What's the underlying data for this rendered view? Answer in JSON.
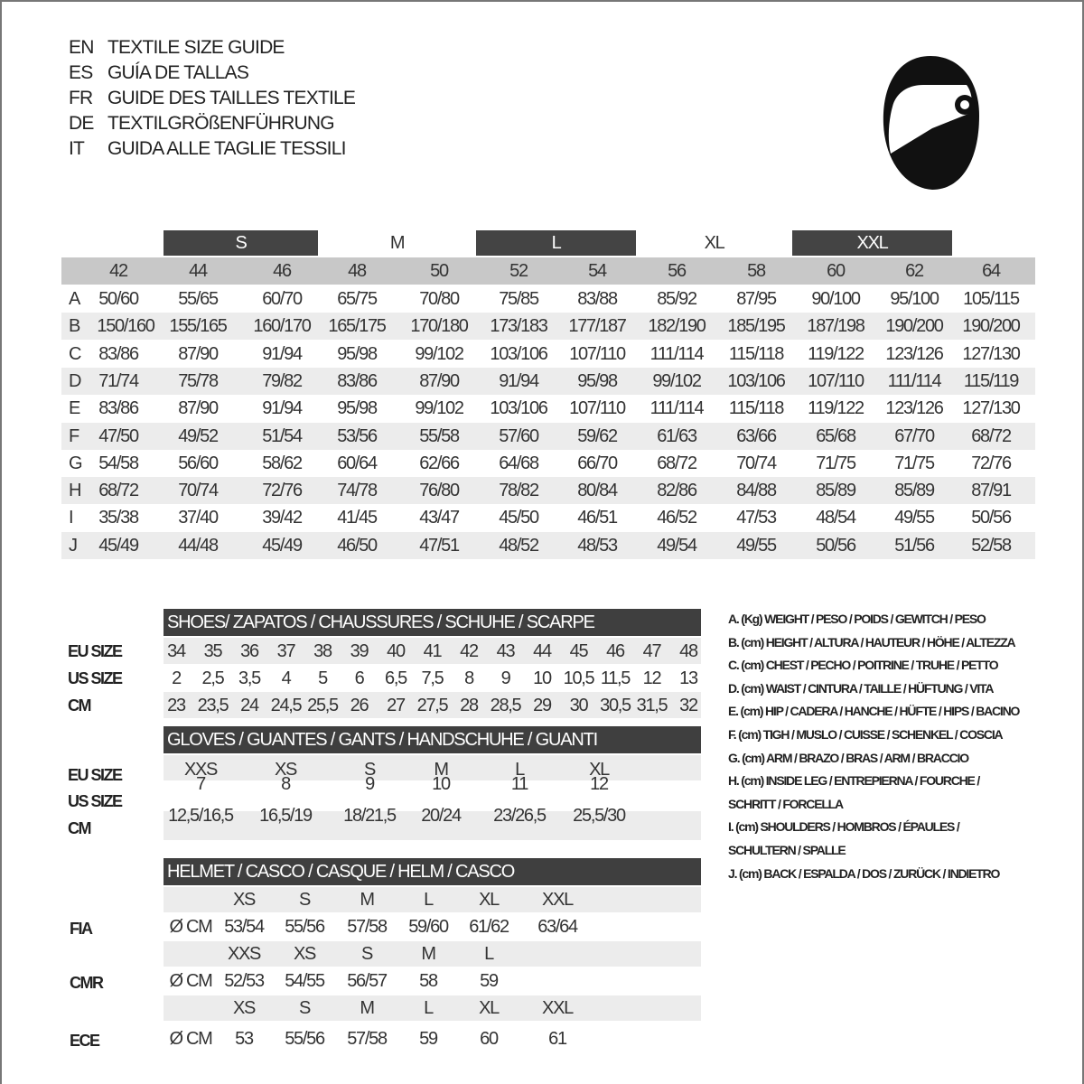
{
  "titles": [
    {
      "code": "EN",
      "text": "TEXTILE SIZE GUIDE"
    },
    {
      "code": "ES",
      "text": "GUÍA DE TALLAS"
    },
    {
      "code": "FR",
      "text": "GUIDE DES TAILLES TEXTILE"
    },
    {
      "code": "DE",
      "text": "TEXTILGRÖßENFÜHRUNG"
    },
    {
      "code": "IT",
      "text": "GUIDA ALLE TAGLIE TESSILI"
    }
  ],
  "icons": {
    "helmet": "helmet-icon"
  },
  "colors": {
    "dark": "#3f3f3f",
    "header_gray": "#c8c8c8",
    "stripe": "#ececec"
  },
  "textile": {
    "bands": [
      "S",
      "M",
      "L",
      "XL",
      "XXL"
    ],
    "sizes": [
      "42",
      "44",
      "46",
      "48",
      "50",
      "52",
      "54",
      "56",
      "58",
      "60",
      "62",
      "64"
    ],
    "rows": [
      {
        "label": "A",
        "values": [
          "50/60",
          "55/65",
          "60/70",
          "65/75",
          "70/80",
          "75/85",
          "83/88",
          "85/92",
          "87/95",
          "90/100",
          "95/100",
          "105/115"
        ]
      },
      {
        "label": "B",
        "values": [
          "150/160",
          "155/165",
          "160/170",
          "165/175",
          "170/180",
          "173/183",
          "177/187",
          "182/190",
          "185/195",
          "187/198",
          "190/200",
          "190/200"
        ]
      },
      {
        "label": "C",
        "values": [
          "83/86",
          "87/90",
          "91/94",
          "95/98",
          "99/102",
          "103/106",
          "107/110",
          "111/114",
          "115/118",
          "119/122",
          "123/126",
          "127/130"
        ]
      },
      {
        "label": "D",
        "values": [
          "71/74",
          "75/78",
          "79/82",
          "83/86",
          "87/90",
          "91/94",
          "95/98",
          "99/102",
          "103/106",
          "107/110",
          "111/114",
          "115/119"
        ]
      },
      {
        "label": "E",
        "values": [
          "83/86",
          "87/90",
          "91/94",
          "95/98",
          "99/102",
          "103/106",
          "107/110",
          "111/114",
          "115/118",
          "119/122",
          "123/126",
          "127/130"
        ]
      },
      {
        "label": "F",
        "values": [
          "47/50",
          "49/52",
          "51/54",
          "53/56",
          "55/58",
          "57/60",
          "59/62",
          "61/63",
          "63/66",
          "65/68",
          "67/70",
          "68/72"
        ]
      },
      {
        "label": "G",
        "values": [
          "54/58",
          "56/60",
          "58/62",
          "60/64",
          "62/66",
          "64/68",
          "66/70",
          "68/72",
          "70/74",
          "71/75",
          "71/75",
          "72/76"
        ]
      },
      {
        "label": "H",
        "values": [
          "68/72",
          "70/74",
          "72/76",
          "74/78",
          "76/80",
          "78/82",
          "80/84",
          "82/86",
          "84/88",
          "85/89",
          "85/89",
          "87/91"
        ]
      },
      {
        "label": "I",
        "values": [
          "35/38",
          "37/40",
          "39/42",
          "41/45",
          "43/47",
          "45/50",
          "46/51",
          "46/52",
          "47/53",
          "48/54",
          "49/55",
          "50/56"
        ]
      },
      {
        "label": "J",
        "values": [
          "45/49",
          "44/48",
          "45/49",
          "46/50",
          "47/51",
          "48/52",
          "48/53",
          "49/54",
          "49/55",
          "50/56",
          "51/56",
          "52/58"
        ]
      }
    ]
  },
  "shoes": {
    "title": "SHOES/ ZAPATOS / CHAUSSURES / SCHUHE / SCARPE",
    "rows": [
      {
        "label": "EU SIZE",
        "values": [
          "34",
          "35",
          "36",
          "37",
          "38",
          "39",
          "40",
          "41",
          "42",
          "43",
          "44",
          "45",
          "46",
          "47",
          "48"
        ]
      },
      {
        "label": "US SIZE",
        "values": [
          "2",
          "2,5",
          "3,5",
          "4",
          "5",
          "6",
          "6,5",
          "7,5",
          "8",
          "9",
          "10",
          "10,5",
          "11,5",
          "12",
          "13"
        ]
      },
      {
        "label": "CM",
        "values": [
          "23",
          "23,5",
          "24",
          "24,5",
          "25,5",
          "26",
          "27",
          "27,5",
          "28",
          "28,5",
          "29",
          "30",
          "30,5",
          "31,5",
          "32"
        ]
      }
    ]
  },
  "gloves": {
    "title": "GLOVES / GUANTES / GANTS / HANDSCHUHE / GUANTI",
    "rows": [
      {
        "label": "EU SIZE",
        "values": [
          "XXS",
          "XS",
          "S",
          "M",
          "L",
          "XL"
        ]
      },
      {
        "label": "US SIZE",
        "values": [
          "7",
          "8",
          "9",
          "10",
          "11",
          "12"
        ]
      },
      {
        "label": "CM",
        "values": [
          "12,5/16,5",
          "16,5/19",
          "18/21,5",
          "20/24",
          "23/26,5",
          "25,5/30"
        ]
      }
    ]
  },
  "helmet": {
    "title": "HELMET / CASCO / CASQUE / HELM / CASCO",
    "unit": "Ø CM",
    "groups": [
      {
        "label": "FIA",
        "sizes": [
          "XS",
          "S",
          "M",
          "L",
          "XL",
          "XXL"
        ],
        "values": [
          "53/54",
          "55/56",
          "57/58",
          "59/60",
          "61/62",
          "63/64"
        ]
      },
      {
        "label": "CMR",
        "sizes": [
          "XXS",
          "XS",
          "S",
          "M",
          "L"
        ],
        "values": [
          "52/53",
          "54/55",
          "56/57",
          "58",
          "59"
        ]
      },
      {
        "label": "ECE",
        "sizes": [
          "XS",
          "S",
          "M",
          "L",
          "XL",
          "XXL"
        ],
        "values": [
          "53",
          "55/56",
          "57/58",
          "59",
          "60",
          "61"
        ]
      }
    ]
  },
  "legend": [
    "A. (Kg) WEIGHT / PESO / POIDS / GEWITCH / PESO",
    "B. (cm) HEIGHT / ALTURA / HAUTEUR / HÖHE / ALTEZZA",
    "C. (cm) CHEST / PECHO / POITRINE / TRUHE / PETTO",
    "D. (cm) WAIST / CINTURA / TAILLE / HÜFTUNG / VITA",
    "E. (cm) HIP / CADERA / HANCHE / HÜFTE / HIPS /  BACINO",
    "F.  (cm) TIGH / MUSLO / CUISSE / SCHENKEL / COSCIA",
    "G. (cm) ARM  / BRAZO / BRAS / ARM / BRACCIO",
    "H. (cm) INSIDE LEG / ENTREPIERNA / FOURCHE /",
    "SCHRITT / FORCELLA",
    "I.  (cm) SHOULDERS / HOMBROS / ÉPAULES /",
    "SCHULTERN / SPALLE",
    "J. (cm) BACK / ESPALDA / DOS / ZURÜCK / INDIETRO"
  ]
}
